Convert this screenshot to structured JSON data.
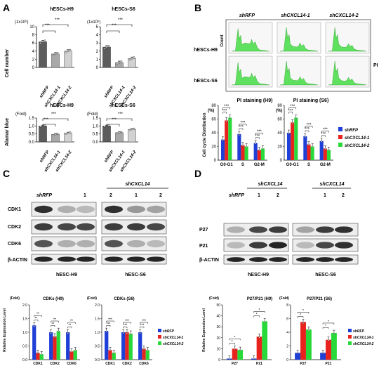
{
  "panels": {
    "A": {
      "label": "A",
      "top_left": {
        "title": "hESCs-H9",
        "unit": "(1x10⁶)",
        "ylabel": "Cell number",
        "sig": [
          "***",
          "***"
        ]
      },
      "top_right": {
        "title": "hESCs-S6",
        "unit": "(1x10⁶)",
        "sig": [
          "***",
          "***"
        ]
      },
      "bottom_left": {
        "title": "hESCs-H9",
        "unit": "(Fold)",
        "ylabel": "Alamar blue",
        "sig": [
          "***",
          "***"
        ]
      },
      "bottom_right": {
        "title": "hESCs-S6",
        "unit": "(Fold)",
        "sig": [
          "***",
          "***"
        ]
      },
      "xlabels": [
        "shRFP",
        "shCXCL14-1",
        "shCXCL14-2"
      ]
    },
    "B": {
      "label": "B",
      "col_labels": [
        "shRFP",
        "shCXCL14-1",
        "shCXCL14-2"
      ],
      "row_labels": [
        "hESCs-H9",
        "hESCs-S6"
      ],
      "count_label": "Count",
      "pi_label": "PI",
      "bar_titles": [
        "PI staining (H9)",
        "PI staining (S6)"
      ],
      "unit": "(%)",
      "ylabel": "Cell cycle Distribution",
      "xlabels": [
        "G0-G1",
        "S",
        "G2-M"
      ],
      "legend": [
        "shRFP",
        "shCXCL14-1",
        "shCXCL14-2"
      ]
    },
    "C": {
      "label": "C",
      "group_label": "shCXCL14",
      "lane_labels": [
        "shRFP",
        "1",
        "2"
      ],
      "proteins": [
        "CDK1",
        "CDK2",
        "CDK6",
        "β-ACTIN"
      ],
      "cell_labels": [
        "hESC-H9",
        "hESC-S6"
      ],
      "bar_titles": [
        "CDKs (H9)",
        "CDKs (S6)"
      ],
      "unit": "(Fold)",
      "ylabel": "Relative Expression Level",
      "xlabels": [
        "CDK1",
        "CDK2",
        "CDK6"
      ],
      "legend": [
        "shRFP",
        "shCXCL14-1",
        "shCXCL14-2"
      ]
    },
    "D": {
      "label": "D",
      "group_label": "shCXCL14",
      "lane_labels": [
        "shRFP",
        "1",
        "2"
      ],
      "proteins": [
        "P27",
        "P21",
        "β-ACTIN"
      ],
      "cell_labels": [
        "hESC-H9",
        "hESC-S6"
      ],
      "bar_titles": [
        "P27/P21 (H9)",
        "P27/P21 (S6)"
      ],
      "unit": "(Fold)",
      "ylabel": "Relative Expression Level",
      "xlabels": [
        "P27",
        "P21"
      ],
      "legend": [
        "shRFP",
        "shCXCL14-1",
        "shCXCL14-2"
      ]
    }
  },
  "colors": {
    "rfp": "#1f3fd6",
    "kd1": "#e8231e",
    "kd2": "#28d93a",
    "dark": "#5c5c5c",
    "mid": "#a8a8a8",
    "light": "#d2d2d2",
    "flow": "#5fe05f"
  },
  "chart_data": [
    {
      "type": "bar",
      "panel": "A-top-left",
      "categories": [
        "shRFP",
        "shCXCL14-1",
        "shCXCL14-2"
      ],
      "values": [
        6.3,
        3.3,
        4.0
      ],
      "ylim": [
        0,
        10
      ],
      "yticks": [
        0,
        2,
        4,
        6,
        8,
        10
      ]
    },
    {
      "type": "bar",
      "panel": "A-top-right",
      "categories": [
        "shRFP",
        "shCXCL14-1",
        "shCXCL14-2"
      ],
      "values": [
        2.5,
        0.6,
        1.1
      ],
      "ylim": [
        0,
        5
      ],
      "yticks": [
        0,
        1,
        2,
        3,
        4,
        5
      ]
    },
    {
      "type": "bar",
      "panel": "A-bottom-left",
      "categories": [
        "shRFP",
        "shCXCL14-1",
        "shCXCL14-2"
      ],
      "values": [
        1.0,
        0.48,
        0.56
      ],
      "ylim": [
        0,
        1.5
      ],
      "yticks": [
        0.0,
        0.5,
        1.0,
        1.5
      ]
    },
    {
      "type": "bar",
      "panel": "A-bottom-right",
      "categories": [
        "shRFP",
        "shCXCL14-1",
        "shCXCL14-2"
      ],
      "values": [
        1.0,
        0.58,
        0.79
      ],
      "ylim": [
        0,
        1.5
      ],
      "yticks": [
        0.0,
        0.5,
        1.0,
        1.5
      ]
    },
    {
      "type": "bar",
      "panel": "B-H9",
      "categories": [
        "G0-G1",
        "S",
        "G2-M"
      ],
      "ylim": [
        0,
        80
      ],
      "yticks": [
        0,
        20,
        40,
        60,
        80
      ],
      "series": [
        {
          "name": "shRFP",
          "values": [
            30,
            38,
            25
          ]
        },
        {
          "name": "shCXCL14-1",
          "values": [
            58,
            22,
            15
          ]
        },
        {
          "name": "shCXCL14-2",
          "values": [
            62,
            20,
            17
          ]
        }
      ]
    },
    {
      "type": "bar",
      "panel": "B-S6",
      "categories": [
        "G0-G1",
        "S",
        "G2-M"
      ],
      "ylim": [
        0,
        80
      ],
      "yticks": [
        0,
        20,
        40,
        60,
        80
      ],
      "series": [
        {
          "name": "shRFP",
          "values": [
            40,
            35,
            28
          ]
        },
        {
          "name": "shCXCL14-1",
          "values": [
            55,
            23,
            17
          ]
        },
        {
          "name": "shCXCL14-2",
          "values": [
            62,
            20,
            15
          ]
        }
      ]
    },
    {
      "type": "bar",
      "panel": "C-H9",
      "categories": [
        "CDK1",
        "CDK2",
        "CDK6"
      ],
      "ylim": [
        0,
        2.0
      ],
      "yticks": [
        0.0,
        0.5,
        1.0,
        1.5,
        2.0
      ],
      "series": [
        {
          "name": "shRFP",
          "values": [
            1.25,
            1.0,
            1.0
          ]
        },
        {
          "name": "shCXCL14-1",
          "values": [
            0.25,
            0.85,
            0.3
          ]
        },
        {
          "name": "shCXCL14-2",
          "values": [
            0.2,
            1.05,
            0.35
          ]
        }
      ]
    },
    {
      "type": "bar",
      "panel": "C-S6",
      "categories": [
        "CDK1",
        "CDK2",
        "CDK6"
      ],
      "ylim": [
        0,
        2.0
      ],
      "yticks": [
        0.0,
        0.5,
        1.0,
        1.5,
        2.0
      ],
      "series": [
        {
          "name": "shRFP",
          "values": [
            1.05,
            1.0,
            1.0
          ]
        },
        {
          "name": "shCXCL14-1",
          "values": [
            0.35,
            1.0,
            0.4
          ]
        },
        {
          "name": "shCXCL14-2",
          "values": [
            0.25,
            0.95,
            0.35
          ]
        }
      ]
    },
    {
      "type": "bar",
      "panel": "D-H9",
      "categories": [
        "P27",
        "P21"
      ],
      "ylim": [
        0,
        50
      ],
      "yticks": [
        0,
        10,
        20,
        30,
        40,
        50
      ],
      "series": [
        {
          "name": "shRFP",
          "values": [
            1,
            1
          ]
        },
        {
          "name": "shCXCL14-1",
          "values": [
            10,
            21
          ]
        },
        {
          "name": "shCXCL14-2",
          "values": [
            9,
            35
          ]
        }
      ]
    },
    {
      "type": "bar",
      "panel": "D-S6",
      "categories": [
        "P27",
        "P21"
      ],
      "ylim": [
        0,
        8
      ],
      "yticks": [
        0,
        2,
        4,
        6,
        8
      ],
      "series": [
        {
          "name": "shRFP",
          "values": [
            1,
            1
          ]
        },
        {
          "name": "shCXCL14-1",
          "values": [
            5.5,
            2.9
          ]
        },
        {
          "name": "shCXCL14-2",
          "values": [
            4.4,
            3.9
          ]
        }
      ]
    }
  ]
}
